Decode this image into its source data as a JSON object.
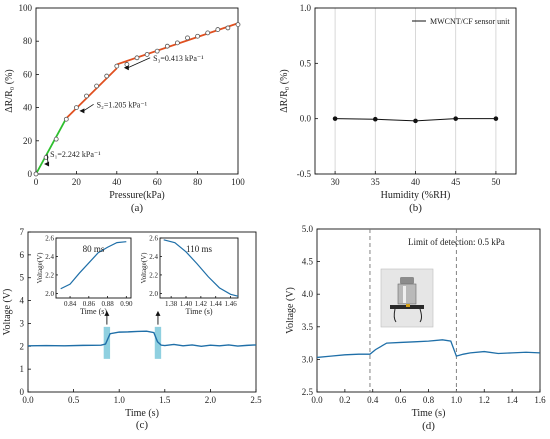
{
  "chart_data": [
    {
      "id": "a",
      "type": "line",
      "panel_label": "(a)",
      "xlabel": "Pressure(kPa)",
      "ylabel": "ΔR/R₀ (%)",
      "xlim": [
        0,
        100
      ],
      "ylim": [
        0,
        100
      ],
      "xticks": [
        0,
        20,
        40,
        60,
        80,
        100
      ],
      "yticks": [
        0,
        20,
        40,
        60,
        80,
        100
      ],
      "series": [
        {
          "color": "#555555",
          "marker": "open-circle",
          "x": [
            0,
            5,
            10,
            15,
            20,
            25,
            30,
            35,
            40,
            45,
            50,
            55,
            60,
            65,
            70,
            75,
            80,
            85,
            90,
            95,
            100
          ],
          "y": [
            0,
            10,
            21,
            33,
            40,
            47,
            53,
            59,
            65,
            66,
            70,
            72,
            74,
            77,
            79,
            82,
            83,
            85,
            87,
            88,
            90
          ]
        }
      ],
      "fits": [
        {
          "color": "#2ec02e",
          "x": [
            0,
            15
          ],
          "y": [
            0,
            33.6
          ]
        },
        {
          "color": "#e05020",
          "x": [
            15,
            40
          ],
          "y": [
            33.6,
            63.7
          ]
        },
        {
          "color": "#e05020",
          "x": [
            40,
            100
          ],
          "y": [
            66,
            90.8
          ]
        }
      ],
      "annotations": [
        {
          "text": "S₁=2.242 kPa⁻¹",
          "x": 7,
          "y": 12
        },
        {
          "text": "S₂=1.205 kPa⁻¹",
          "x": 30,
          "y": 42
        },
        {
          "text": "S₃=0.413 kPa⁻¹",
          "x": 58,
          "y": 70
        }
      ]
    },
    {
      "id": "b",
      "type": "line",
      "panel_label": "(b)",
      "xlabel": "Humidity (%RH)",
      "ylabel": "ΔR/R₀ (%)",
      "xlim": [
        27.5,
        52.5
      ],
      "ylim": [
        -0.5,
        1.0
      ],
      "xticks": [
        30,
        35,
        40,
        45,
        50
      ],
      "yticks": [
        -0.5,
        0.0,
        0.5,
        1.0
      ],
      "ytick_labels": [
        "-0.5",
        "0.0",
        "0.5",
        "1.0"
      ],
      "grid": "vertical",
      "legend": "top-right",
      "series": [
        {
          "name": "MWCNT/CF sensor unit",
          "color": "#111111",
          "marker": "filled-circle",
          "x": [
            30,
            35,
            40,
            45,
            50
          ],
          "y": [
            0.0,
            -0.005,
            -0.02,
            0.0,
            0.0
          ]
        }
      ]
    },
    {
      "id": "c",
      "type": "line",
      "panel_label": "(c)",
      "xlabel": "Time (s)",
      "ylabel": "Voltage (V)",
      "xlim": [
        0,
        2.5
      ],
      "ylim": [
        0,
        7
      ],
      "xticks": [
        0.0,
        0.5,
        1.0,
        1.5,
        2.0,
        2.5
      ],
      "xtick_labels": [
        "0.0",
        "0.5",
        "1.0",
        "1.5",
        "2.0",
        "2.5"
      ],
      "yticks": [
        0,
        1,
        2,
        3,
        4,
        5,
        6,
        7
      ],
      "series": [
        {
          "color": "#1f6fa8",
          "x": [
            0,
            0.2,
            0.4,
            0.6,
            0.8,
            0.85,
            0.9,
            1.0,
            1.1,
            1.2,
            1.3,
            1.38,
            1.42,
            1.46,
            1.5,
            1.6,
            1.7,
            1.8,
            1.9,
            2.0,
            2.1,
            2.2,
            2.3,
            2.4,
            2.5
          ],
          "y": [
            2.02,
            2.03,
            2.02,
            2.04,
            2.05,
            2.1,
            2.55,
            2.62,
            2.63,
            2.65,
            2.66,
            2.6,
            2.2,
            2.05,
            2.03,
            2.08,
            2.02,
            2.06,
            2.0,
            2.05,
            2.02,
            2.06,
            2.01,
            2.04,
            2.06
          ]
        }
      ],
      "highlights": [
        {
          "x": [
            0.83,
            0.9
          ],
          "color": "#8fd0e0"
        },
        {
          "x": [
            1.39,
            1.46
          ],
          "color": "#8fd0e0"
        }
      ],
      "insets": [
        {
          "label": "80 ms",
          "xlabel": "Time (s)",
          "ylabel": "Voltage(V)",
          "xlim": [
            0.825,
            0.905
          ],
          "ylim": [
            1.95,
            2.6
          ],
          "xticks": [
            0.84,
            0.86,
            0.88,
            0.9
          ],
          "xtick_labels": [
            "0.84",
            "0.86",
            "0.88",
            "0.90"
          ],
          "yticks": [
            2.0,
            2.2,
            2.4,
            2.6
          ],
          "ytick_labels": [
            "2.0",
            "2.2",
            "2.4",
            "2.6"
          ],
          "x": [
            0.83,
            0.84,
            0.85,
            0.86,
            0.87,
            0.88,
            0.89,
            0.9
          ],
          "y": [
            2.05,
            2.1,
            2.22,
            2.33,
            2.44,
            2.5,
            2.55,
            2.56
          ]
        },
        {
          "label": "110 ms",
          "xlabel": "Time (s)",
          "ylabel": "Voltage(V)",
          "xlim": [
            1.365,
            1.47
          ],
          "ylim": [
            1.95,
            2.6
          ],
          "xticks": [
            1.38,
            1.4,
            1.42,
            1.44,
            1.46
          ],
          "xtick_labels": [
            "1.38",
            "1.40",
            "1.42",
            "1.44",
            "1.46"
          ],
          "yticks": [
            2.0,
            2.2,
            2.4,
            2.6
          ],
          "ytick_labels": [
            "2.0",
            "2.2",
            "2.4",
            "2.6"
          ],
          "x": [
            1.37,
            1.385,
            1.4,
            1.415,
            1.43,
            1.445,
            1.46,
            1.47
          ],
          "y": [
            2.58,
            2.55,
            2.45,
            2.32,
            2.18,
            2.06,
            1.99,
            1.97
          ]
        }
      ]
    },
    {
      "id": "d",
      "type": "line",
      "panel_label": "(d)",
      "xlabel": "Time (s)",
      "ylabel": "Voltage (V)",
      "xlim": [
        0,
        1.6
      ],
      "ylim": [
        2.5,
        5.0
      ],
      "xticks": [
        0.0,
        0.2,
        0.4,
        0.6,
        0.8,
        1.0,
        1.2,
        1.4,
        1.6
      ],
      "xtick_labels": [
        "0.0",
        "0.2",
        "0.4",
        "0.6",
        "0.8",
        "1.0",
        "1.2",
        "1.4",
        "1.6"
      ],
      "yticks": [
        2.5,
        3.0,
        3.5,
        4.0,
        4.5,
        5.0
      ],
      "ytick_labels": [
        "2.5",
        "3.0",
        "3.5",
        "4.0",
        "4.5",
        "5.0"
      ],
      "annotation": "Limit of detection: 0.5 kPa",
      "vlines": [
        0.38,
        1.0
      ],
      "series": [
        {
          "color": "#1f6fa8",
          "x": [
            0,
            0.1,
            0.2,
            0.3,
            0.38,
            0.42,
            0.5,
            0.6,
            0.7,
            0.8,
            0.9,
            0.96,
            1.0,
            1.05,
            1.1,
            1.2,
            1.3,
            1.4,
            1.5,
            1.6
          ],
          "y": [
            3.03,
            3.05,
            3.07,
            3.08,
            3.08,
            3.15,
            3.25,
            3.26,
            3.27,
            3.28,
            3.3,
            3.28,
            3.05,
            3.08,
            3.1,
            3.12,
            3.09,
            3.1,
            3.11,
            3.1
          ]
        }
      ]
    }
  ]
}
